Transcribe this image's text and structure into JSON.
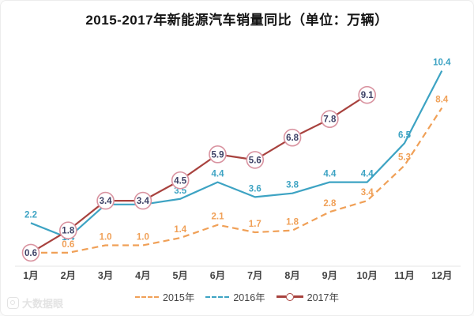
{
  "title": "2015-2017年新能源汽车销量同比（单位：万辆）",
  "watermark": {
    "text": "大数据眼"
  },
  "legend": {
    "items": [
      {
        "label": "2015年"
      },
      {
        "label": "2016年"
      },
      {
        "label": "2017年"
      }
    ]
  },
  "chart_data": {
    "type": "line",
    "title": "2015-2017年新能源汽车销量同比",
    "unit": "万辆",
    "categories": [
      "1月",
      "2月",
      "3月",
      "4月",
      "5月",
      "6月",
      "7月",
      "8月",
      "9月",
      "10月",
      "11月",
      "12月"
    ],
    "series": [
      {
        "name": "2015年",
        "color": "#f0a057",
        "line_style": "dashed",
        "values": [
          0.6,
          0.6,
          1.0,
          1.0,
          1.4,
          2.1,
          1.7,
          1.8,
          2.8,
          3.4,
          5.3,
          8.4
        ],
        "hidden_label_indices": [
          0
        ]
      },
      {
        "name": "2016年",
        "color": "#3da3c3",
        "line_style": "solid",
        "values": [
          2.2,
          1.4,
          3.2,
          3.2,
          3.5,
          4.4,
          3.6,
          3.8,
          4.4,
          4.4,
          6.5,
          10.4
        ],
        "hidden_label_indices": [
          2,
          3
        ],
        "label_dy": {
          "1": 10
        }
      },
      {
        "name": "2017年",
        "color": "#a8423e",
        "line_style": "solid",
        "marker": "circle",
        "marker_stroke": "#d993a0",
        "label_color": "#3d4166",
        "values": [
          0.6,
          1.8,
          3.4,
          3.4,
          4.5,
          5.9,
          5.6,
          6.8,
          7.8,
          9.1,
          null,
          null
        ]
      }
    ],
    "ylim": [
      0,
      11
    ],
    "grid": false,
    "legend_position": "bottom",
    "x_axis_line": true,
    "axis_color": "#e4e4e4",
    "tick_label_color": "#454545"
  }
}
